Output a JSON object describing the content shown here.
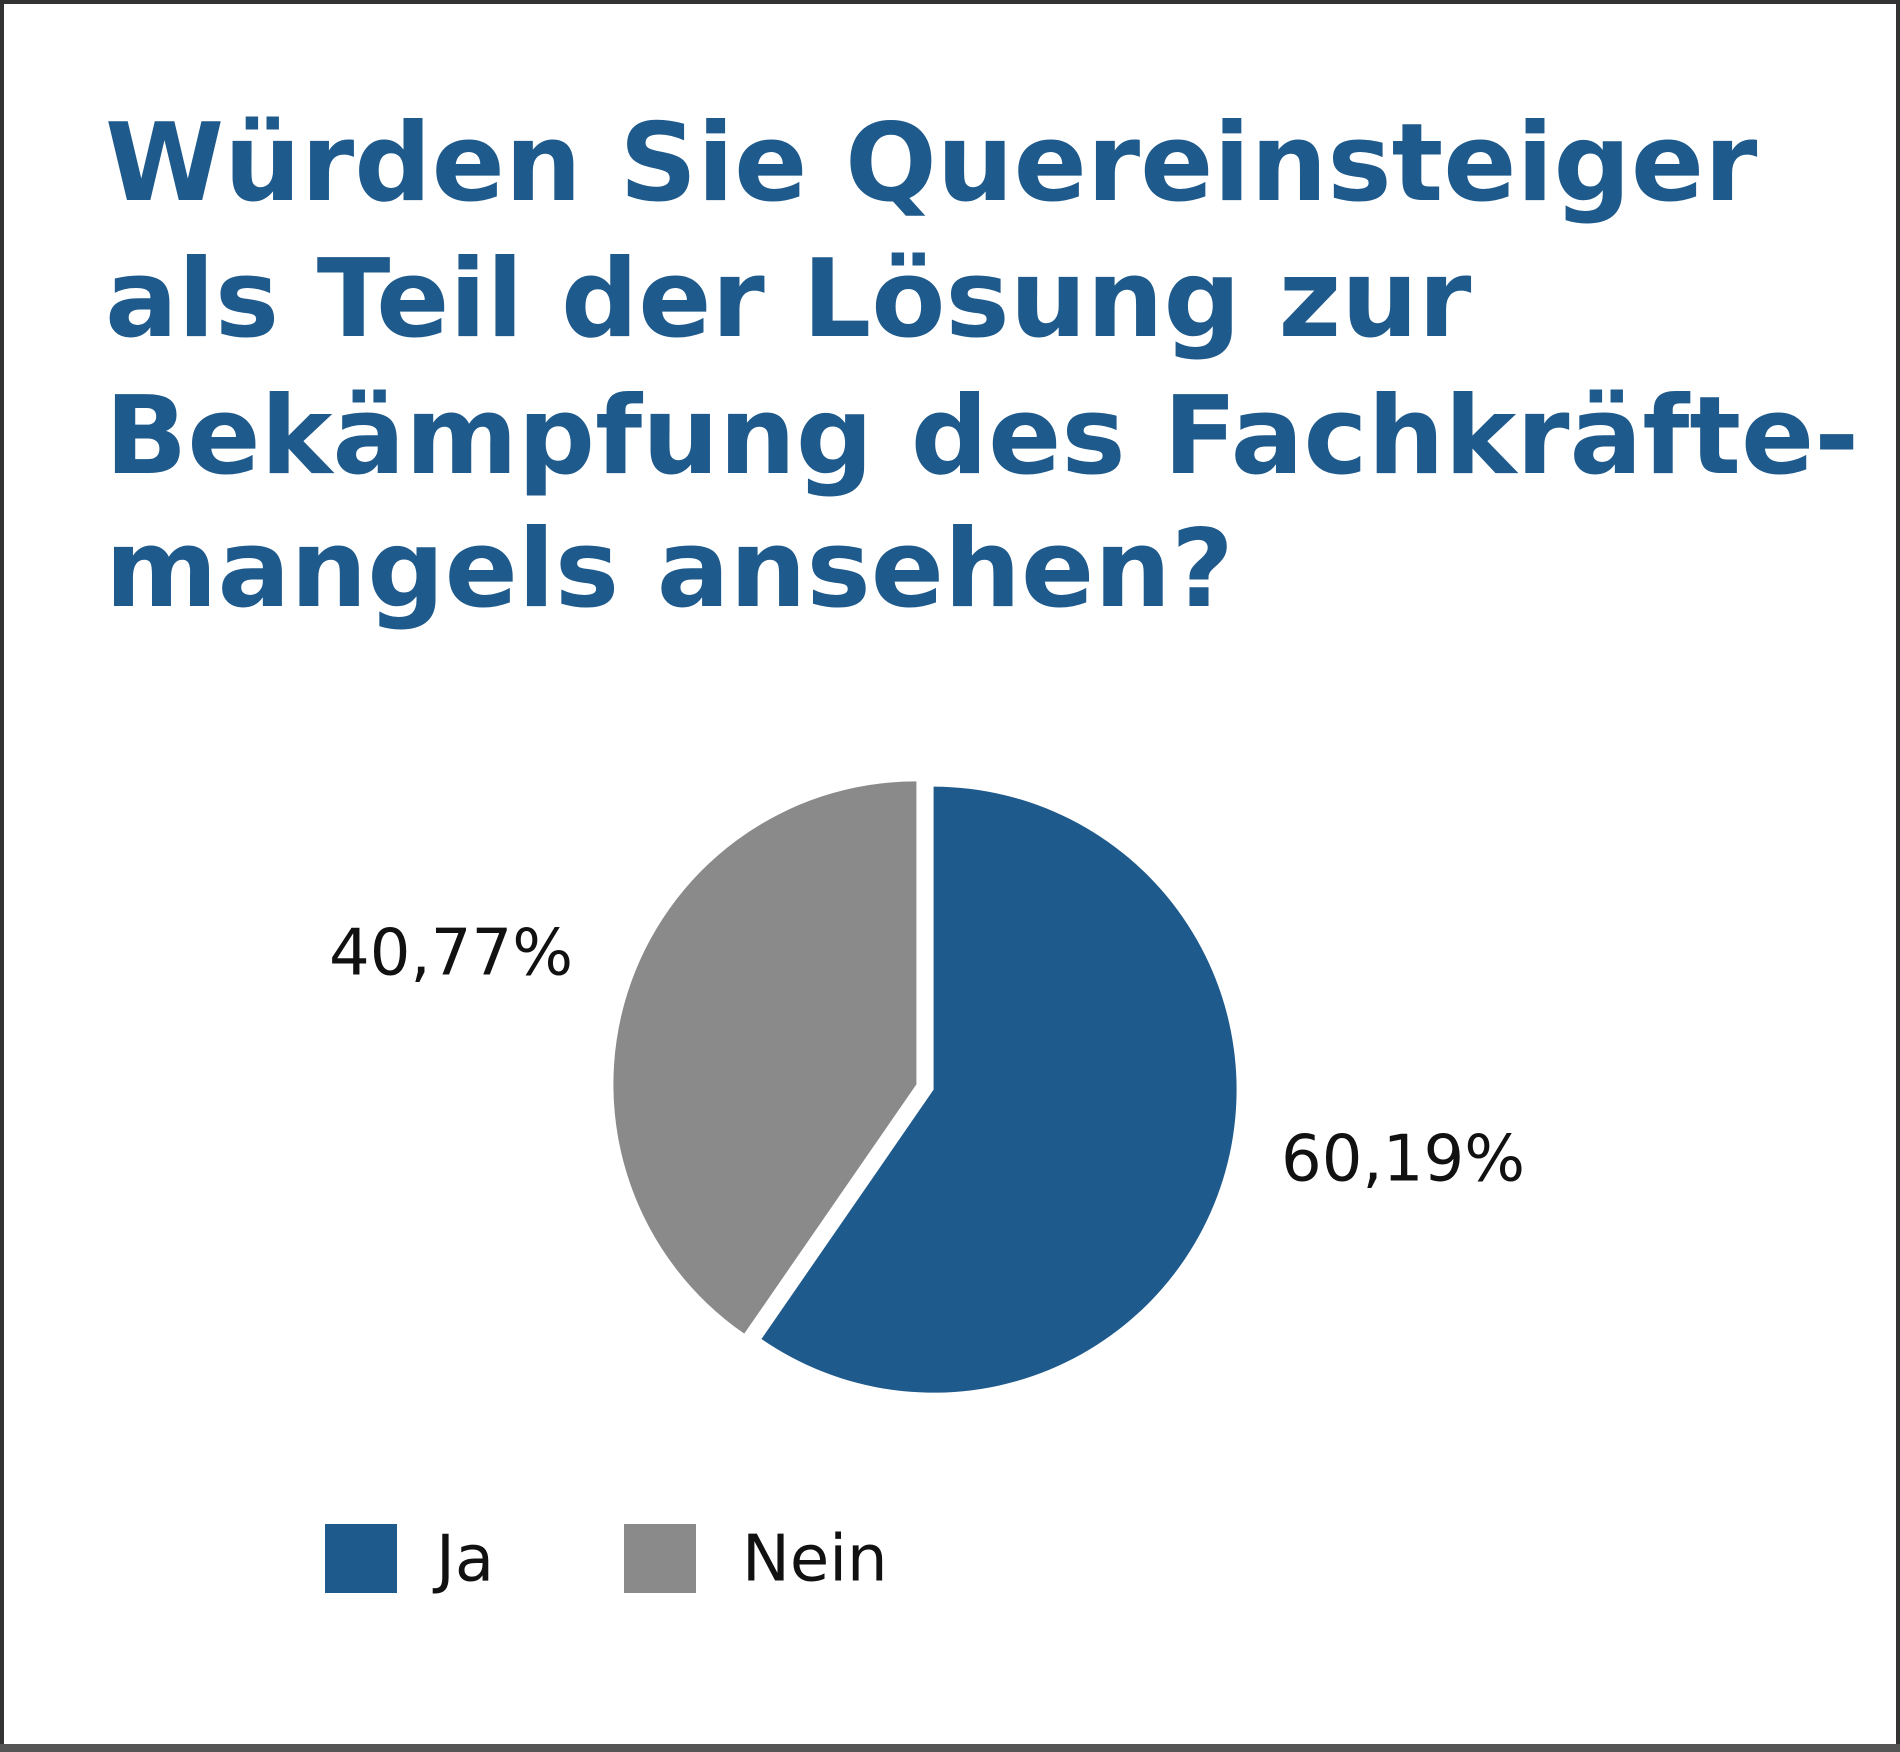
{
  "chart_data": {
    "type": "pie",
    "title": [
      "Würden Sie Quereinsteiger",
      "als Teil der Lösung zur",
      "Bekämpfung des Fachkräfte-",
      "mangels ansehen?"
    ],
    "categories": [
      "Ja",
      "Nein"
    ],
    "values": [
      60.19,
      40.77
    ],
    "value_labels": [
      "60,19%",
      "40,77%"
    ],
    "colors": [
      "#1f5a8c",
      "#8a8a8a"
    ]
  }
}
